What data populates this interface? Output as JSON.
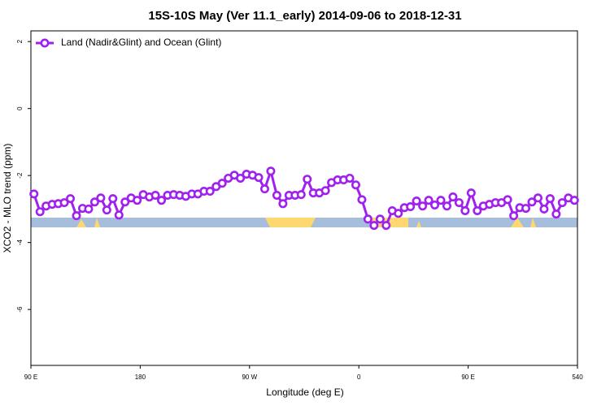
{
  "chart_data": {
    "type": "line",
    "title": "15S-10S May (Ver 11.1_early)   2014-09-06 to 2018-12-31",
    "x_label": "Longitude (deg E)",
    "y_label": "XCO2 - MLO trend (ppm)",
    "xlim": [
      90,
      540
    ],
    "xticks": [
      {
        "value": 90,
        "label": "90 E"
      },
      180,
      {
        "value": 270,
        "label": "90 W"
      },
      {
        "value": 360,
        "label": "0"
      },
      {
        "value": 450,
        "label": "90 E"
      },
      540
    ],
    "ylim": [
      -7.67,
      2.32
    ],
    "yticks": [
      2,
      0,
      -2,
      -4,
      -6
    ],
    "legend": "top-left",
    "x": [
      92.5,
      97.5,
      102.5,
      107.5,
      112.5,
      117.5,
      122.5,
      127.5,
      132.5,
      137.5,
      142.5,
      147.5,
      152.5,
      157.5,
      162.5,
      167.5,
      172.5,
      177.5,
      182.5,
      187.5,
      192.5,
      197.5,
      202.5,
      207.5,
      212.5,
      217.5,
      222.5,
      227.5,
      232.5,
      237.5,
      242.5,
      247.5,
      252.5,
      257.5,
      262.5,
      267.5,
      272.5,
      277.5,
      282.5,
      287.5,
      292.5,
      297.5,
      302.5,
      307.5,
      312.5,
      317.5,
      322.5,
      327.5,
      332.5,
      337.5,
      342.5,
      347.5,
      352.5,
      357.5,
      362.5,
      367.5,
      372.5,
      377.5,
      382.5,
      387.5,
      392.5,
      397.5,
      402.5,
      407.5,
      412.5,
      417.5,
      422.5,
      427.5,
      432.5,
      437.5,
      442.5,
      447.5,
      452.5,
      457.5,
      462.5,
      467.5,
      472.5,
      477.5,
      482.5,
      487.5,
      492.5,
      497.5,
      502.5,
      507.5,
      512.5,
      517.5,
      522.5,
      527.5,
      532.5,
      537.5
    ],
    "series": [
      {
        "name": "Land (Nadir&Glint) and Ocean (Glint)",
        "color": "#a020f0",
        "values": [
          -2.55,
          -3.08,
          -2.91,
          -2.86,
          -2.84,
          -2.81,
          -2.69,
          -3.2,
          -2.98,
          -3.0,
          -2.79,
          -2.67,
          -3.03,
          -2.69,
          -3.18,
          -2.79,
          -2.67,
          -2.74,
          -2.57,
          -2.64,
          -2.59,
          -2.74,
          -2.59,
          -2.57,
          -2.59,
          -2.62,
          -2.55,
          -2.55,
          -2.47,
          -2.47,
          -2.33,
          -2.23,
          -2.08,
          -1.99,
          -2.08,
          -1.96,
          -1.99,
          -2.06,
          -2.4,
          -1.87,
          -2.59,
          -2.84,
          -2.59,
          -2.59,
          -2.57,
          -2.11,
          -2.52,
          -2.52,
          -2.45,
          -2.21,
          -2.13,
          -2.13,
          -2.08,
          -2.28,
          -2.72,
          -3.3,
          -3.49,
          -3.3,
          -3.49,
          -3.05,
          -3.13,
          -2.96,
          -2.93,
          -2.76,
          -2.91,
          -2.74,
          -2.88,
          -2.74,
          -2.91,
          -2.64,
          -2.81,
          -3.05,
          -2.52,
          -3.05,
          -2.91,
          -2.86,
          -2.81,
          -2.81,
          -2.72,
          -3.2,
          -2.96,
          -2.98,
          -2.79,
          -2.67,
          -3.0,
          -2.69,
          -3.15,
          -2.81,
          -2.67,
          -2.74
        ]
      }
    ]
  }
}
